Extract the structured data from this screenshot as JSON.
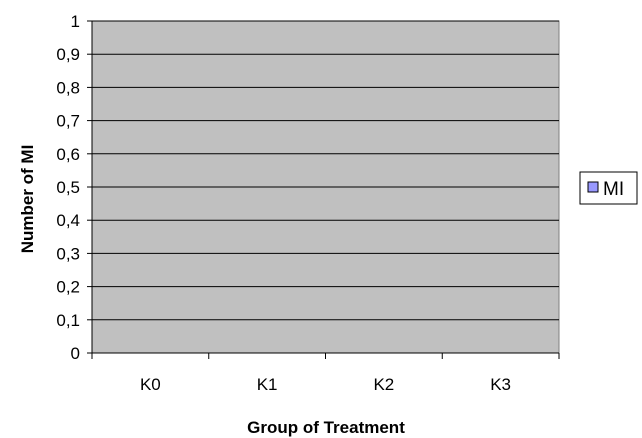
{
  "chart_data": {
    "type": "bar",
    "categories": [
      "K0",
      "K1",
      "K2",
      "K3"
    ],
    "series": [
      {
        "name": "MI",
        "values": [
          0,
          0,
          0,
          0
        ],
        "color": "#9999ff"
      }
    ],
    "title": "",
    "xlabel": "Group of Treatment",
    "ylabel": "Number of MI",
    "ylim": [
      0,
      1
    ],
    "yticks": [
      0,
      0.1,
      0.2,
      0.3,
      0.4,
      0.5,
      0.6,
      0.7,
      0.8,
      0.9,
      1
    ],
    "ytick_labels": [
      "0",
      "0,1",
      "0,2",
      "0,3",
      "0,4",
      "0,5",
      "0,6",
      "0,7",
      "0,8",
      "0,9",
      "1"
    ],
    "grid": true,
    "legend_position": "right",
    "plot_background": "#c0c0c0"
  }
}
